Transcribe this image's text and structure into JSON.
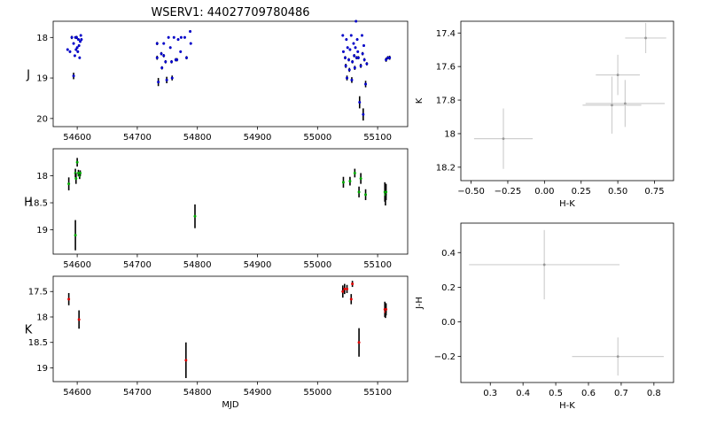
{
  "title": "WSERV1: 44027709780486",
  "chart_data": [
    {
      "id": "J",
      "type": "scatter",
      "ylabel": "J",
      "xlabel": "",
      "xlim": [
        54560,
        55150
      ],
      "ylim": [
        20.2,
        17.6
      ],
      "xticks": [
        54600,
        54700,
        54800,
        54900,
        55000,
        55100
      ],
      "yticks": [
        18,
        19,
        20
      ],
      "tick_labels_x": false,
      "color": "#0000cc",
      "points": [
        {
          "x": 54584,
          "y": 18.3,
          "e": 0.03
        },
        {
          "x": 54588,
          "y": 18.35,
          "e": 0.03
        },
        {
          "x": 54591,
          "y": 18.0,
          "e": 0.04
        },
        {
          "x": 54594,
          "y": 18.15,
          "e": 0.03
        },
        {
          "x": 54594,
          "y": 18.95,
          "e": 0.08
        },
        {
          "x": 54596,
          "y": 18.45,
          "e": 0.03
        },
        {
          "x": 54597,
          "y": 18.0,
          "e": 0.03
        },
        {
          "x": 54598,
          "y": 18.3,
          "e": 0.03
        },
        {
          "x": 54599,
          "y": 18.0,
          "e": 0.04
        },
        {
          "x": 54600,
          "y": 18.25,
          "e": 0.03
        },
        {
          "x": 54601,
          "y": 18.35,
          "e": 0.03
        },
        {
          "x": 54602,
          "y": 18.05,
          "e": 0.03
        },
        {
          "x": 54603,
          "y": 18.2,
          "e": 0.03
        },
        {
          "x": 54604,
          "y": 18.5,
          "e": 0.03
        },
        {
          "x": 54605,
          "y": 18.1,
          "e": 0.03
        },
        {
          "x": 54606,
          "y": 17.95,
          "e": 0.03
        },
        {
          "x": 54607,
          "y": 18.05,
          "e": 0.03
        },
        {
          "x": 54733,
          "y": 18.15,
          "e": 0.04
        },
        {
          "x": 54733,
          "y": 18.5,
          "e": 0.05
        },
        {
          "x": 54735,
          "y": 19.1,
          "e": 0.1
        },
        {
          "x": 54740,
          "y": 18.4,
          "e": 0.04
        },
        {
          "x": 54741,
          "y": 18.75,
          "e": 0.04
        },
        {
          "x": 54744,
          "y": 18.15,
          "e": 0.03
        },
        {
          "x": 54744,
          "y": 18.45,
          "e": 0.04
        },
        {
          "x": 54747,
          "y": 18.6,
          "e": 0.04
        },
        {
          "x": 54749,
          "y": 19.05,
          "e": 0.08
        },
        {
          "x": 54752,
          "y": 18.0,
          "e": 0.03
        },
        {
          "x": 54755,
          "y": 18.25,
          "e": 0.03
        },
        {
          "x": 54757,
          "y": 18.6,
          "e": 0.04
        },
        {
          "x": 54758,
          "y": 19.0,
          "e": 0.06
        },
        {
          "x": 54761,
          "y": 18.0,
          "e": 0.03
        },
        {
          "x": 54764,
          "y": 18.55,
          "e": 0.04
        },
        {
          "x": 54766,
          "y": 18.55,
          "e": 0.04
        },
        {
          "x": 54768,
          "y": 18.05,
          "e": 0.03
        },
        {
          "x": 54772,
          "y": 18.35,
          "e": 0.03
        },
        {
          "x": 54773,
          "y": 18.0,
          "e": 0.03
        },
        {
          "x": 54779,
          "y": 18.0,
          "e": 0.03
        },
        {
          "x": 54782,
          "y": 18.5,
          "e": 0.04
        },
        {
          "x": 54788,
          "y": 17.85,
          "e": 0.03
        },
        {
          "x": 54789,
          "y": 18.15,
          "e": 0.03
        },
        {
          "x": 55042,
          "y": 17.95,
          "e": 0.03
        },
        {
          "x": 55043,
          "y": 18.35,
          "e": 0.03
        },
        {
          "x": 55046,
          "y": 18.5,
          "e": 0.04
        },
        {
          "x": 55047,
          "y": 18.7,
          "e": 0.05
        },
        {
          "x": 55048,
          "y": 18.05,
          "e": 0.03
        },
        {
          "x": 55049,
          "y": 19.0,
          "e": 0.06
        },
        {
          "x": 55050,
          "y": 18.25,
          "e": 0.03
        },
        {
          "x": 55052,
          "y": 18.55,
          "e": 0.04
        },
        {
          "x": 55053,
          "y": 18.8,
          "e": 0.05
        },
        {
          "x": 55054,
          "y": 18.3,
          "e": 0.03
        },
        {
          "x": 55056,
          "y": 17.95,
          "e": 0.03
        },
        {
          "x": 55057,
          "y": 19.05,
          "e": 0.07
        },
        {
          "x": 55058,
          "y": 18.6,
          "e": 0.04
        },
        {
          "x": 55060,
          "y": 18.15,
          "e": 0.03
        },
        {
          "x": 55061,
          "y": 18.45,
          "e": 0.04
        },
        {
          "x": 55062,
          "y": 18.75,
          "e": 0.05
        },
        {
          "x": 55063,
          "y": 18.25,
          "e": 0.03
        },
        {
          "x": 55064,
          "y": 17.6,
          "e": 0.03
        },
        {
          "x": 55065,
          "y": 18.5,
          "e": 0.04
        },
        {
          "x": 55066,
          "y": 18.05,
          "e": 0.03
        },
        {
          "x": 55067,
          "y": 18.35,
          "e": 0.03
        },
        {
          "x": 55068,
          "y": 18.5,
          "e": 0.04
        },
        {
          "x": 55070,
          "y": 19.6,
          "e": 0.15
        },
        {
          "x": 55072,
          "y": 18.7,
          "e": 0.05
        },
        {
          "x": 55074,
          "y": 17.95,
          "e": 0.03
        },
        {
          "x": 55075,
          "y": 18.4,
          "e": 0.04
        },
        {
          "x": 55076,
          "y": 19.9,
          "e": 0.15
        },
        {
          "x": 55077,
          "y": 18.2,
          "e": 0.03
        },
        {
          "x": 55078,
          "y": 18.55,
          "e": 0.04
        },
        {
          "x": 55080,
          "y": 19.15,
          "e": 0.08
        },
        {
          "x": 55082,
          "y": 18.65,
          "e": 0.04
        },
        {
          "x": 55114,
          "y": 18.55,
          "e": 0.05
        },
        {
          "x": 55117,
          "y": 18.5,
          "e": 0.04
        },
        {
          "x": 55120,
          "y": 18.5,
          "e": 0.05
        }
      ]
    },
    {
      "id": "H",
      "type": "scatter",
      "ylabel": "H",
      "xlabel": "",
      "xlim": [
        54560,
        55150
      ],
      "ylim": [
        19.45,
        17.5
      ],
      "xticks": [
        54600,
        54700,
        54800,
        54900,
        55000,
        55100
      ],
      "yticks": [
        18.0,
        18.5,
        19.0
      ],
      "tick_labels_x": true,
      "color": "#00aa00",
      "points": [
        {
          "x": 54586,
          "y": 18.15,
          "e": 0.12
        },
        {
          "x": 54597,
          "y": 19.1,
          "e": 0.28
        },
        {
          "x": 54597,
          "y": 17.95,
          "e": 0.08
        },
        {
          "x": 54598,
          "y": 18.05,
          "e": 0.1
        },
        {
          "x": 54600,
          "y": 17.75,
          "e": 0.08
        },
        {
          "x": 54602,
          "y": 17.95,
          "e": 0.06
        },
        {
          "x": 54604,
          "y": 18.0,
          "e": 0.06
        },
        {
          "x": 54605,
          "y": 17.95,
          "e": 0.05
        },
        {
          "x": 54796,
          "y": 18.75,
          "e": 0.22
        },
        {
          "x": 55043,
          "y": 18.12,
          "e": 0.1
        },
        {
          "x": 55054,
          "y": 18.1,
          "e": 0.08
        },
        {
          "x": 55062,
          "y": 17.95,
          "e": 0.08
        },
        {
          "x": 55069,
          "y": 18.3,
          "e": 0.1
        },
        {
          "x": 55072,
          "y": 18.05,
          "e": 0.1
        },
        {
          "x": 55080,
          "y": 18.35,
          "e": 0.1
        },
        {
          "x": 55112,
          "y": 18.3,
          "e": 0.18
        },
        {
          "x": 55113,
          "y": 18.35,
          "e": 0.2
        },
        {
          "x": 55114,
          "y": 18.3,
          "e": 0.15
        }
      ]
    },
    {
      "id": "K",
      "type": "scatter",
      "ylabel": "K",
      "xlabel": "MJD",
      "xlim": [
        54560,
        55150
      ],
      "ylim": [
        19.27,
        17.2
      ],
      "xticks": [
        54600,
        54700,
        54800,
        54900,
        55000,
        55100
      ],
      "yticks": [
        17.5,
        18.0,
        18.5,
        19.0
      ],
      "tick_labels_x": true,
      "color": "#dd0000",
      "points": [
        {
          "x": 54586,
          "y": 17.65,
          "e": 0.12
        },
        {
          "x": 54603,
          "y": 18.05,
          "e": 0.18
        },
        {
          "x": 54781,
          "y": 18.85,
          "e": 0.35
        },
        {
          "x": 55042,
          "y": 17.5,
          "e": 0.12
        },
        {
          "x": 55045,
          "y": 17.45,
          "e": 0.1
        },
        {
          "x": 55049,
          "y": 17.45,
          "e": 0.08
        },
        {
          "x": 55056,
          "y": 17.65,
          "e": 0.1
        },
        {
          "x": 55058,
          "y": 17.35,
          "e": 0.06
        },
        {
          "x": 55069,
          "y": 18.5,
          "e": 0.28
        },
        {
          "x": 55112,
          "y": 17.85,
          "e": 0.15
        },
        {
          "x": 55113,
          "y": 17.9,
          "e": 0.12
        },
        {
          "x": 55114,
          "y": 17.85,
          "e": 0.12
        }
      ]
    },
    {
      "id": "KvsHK",
      "type": "scatter",
      "ylabel": "K",
      "xlabel": "H-K",
      "xlim": [
        -0.57,
        0.88
      ],
      "ylim": [
        18.28,
        17.33
      ],
      "xticks": [
        -0.5,
        -0.25,
        0.0,
        0.25,
        0.5,
        0.75
      ],
      "xtick_labels": [
        "−0.50",
        "−0.25",
        "0.00",
        "0.25",
        "0.50",
        "0.75"
      ],
      "yticks": [
        17.4,
        17.6,
        17.8,
        18.0,
        18.2
      ],
      "tick_labels_x": true,
      "color": "#999999",
      "points": [
        {
          "x": -0.28,
          "y": 18.03,
          "ex": 0.2,
          "e": 0.18
        },
        {
          "x": 0.46,
          "y": 17.83,
          "ex": 0.2,
          "e": 0.17
        },
        {
          "x": 0.5,
          "y": 17.65,
          "ex": 0.15,
          "e": 0.12
        },
        {
          "x": 0.55,
          "y": 17.82,
          "ex": 0.27,
          "e": 0.14
        },
        {
          "x": 0.69,
          "y": 17.43,
          "ex": 0.14,
          "e": 0.09
        }
      ]
    },
    {
      "id": "JHvsHK",
      "type": "scatter",
      "ylabel": "J-H",
      "xlabel": "H-K",
      "xlim": [
        0.21,
        0.86
      ],
      "ylim": [
        -0.35,
        0.57
      ],
      "xticks": [
        0.3,
        0.4,
        0.5,
        0.6,
        0.7,
        0.8
      ],
      "xtick_labels": [
        "0.3",
        "0.4",
        "0.5",
        "0.6",
        "0.7",
        "0.8"
      ],
      "yticks": [
        -0.2,
        0.0,
        0.2,
        0.4
      ],
      "ytick_labels": [
        "−0.2",
        "0.0",
        "0.2",
        "0.4"
      ],
      "tick_labels_x": true,
      "color": "#999999",
      "points": [
        {
          "x": 0.465,
          "y": 0.33,
          "ex": 0.23,
          "e": 0.2
        },
        {
          "x": 0.69,
          "y": -0.2,
          "ex": 0.14,
          "e": 0.11
        }
      ]
    }
  ]
}
